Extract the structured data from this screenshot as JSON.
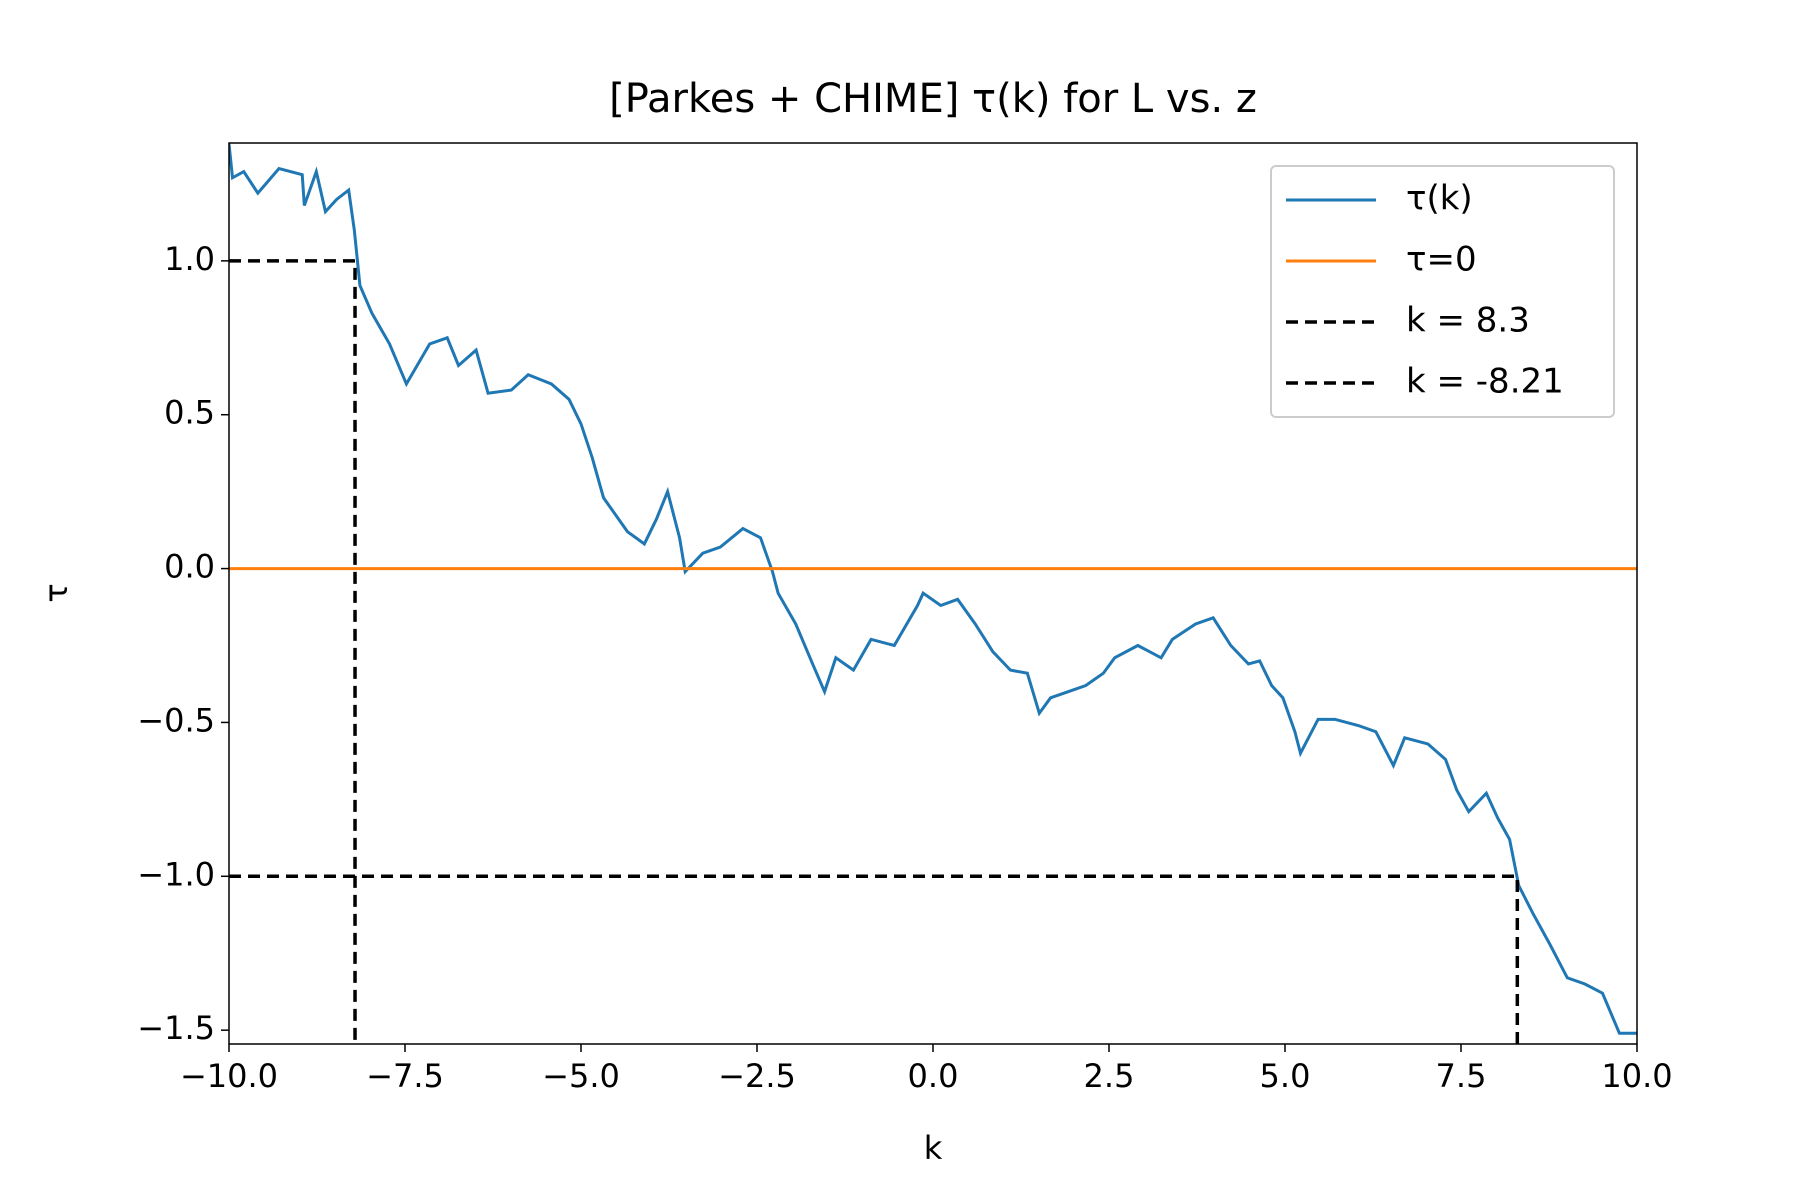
{
  "chart_data": {
    "type": "line",
    "title": "[Parkes + CHIME] τ(k) for L vs. z",
    "x_label": "k",
    "y_label": "τ",
    "xlim": [
      -10,
      10
    ],
    "ylim": [
      -1.545,
      1.383
    ],
    "xticks": [
      {
        "value": -10,
        "label": "−10.0"
      },
      {
        "value": -7.5,
        "label": "−7.5"
      },
      {
        "value": -5,
        "label": "−5.0"
      },
      {
        "value": -2.5,
        "label": "−2.5"
      },
      {
        "value": 0,
        "label": "0.0"
      },
      2.5,
      {
        "value": 5,
        "label": "5.0"
      },
      7.5,
      {
        "value": 10,
        "label": "10.0"
      }
    ],
    "yticks": [
      {
        "value": -1.5,
        "label": "−1.5"
      },
      {
        "value": -1,
        "label": "−1.0"
      },
      {
        "value": -0.5,
        "label": "−0.5"
      },
      {
        "value": 0,
        "label": "0.0"
      },
      0.5,
      {
        "value": 1,
        "label": "1.0"
      }
    ],
    "grid": false,
    "legend": "upper right",
    "series": [
      {
        "name": "τ(k)",
        "color": "#1f77b4",
        "style": "solid",
        "x": [
          -10,
          -9.95,
          -9.79,
          -9.59,
          -9.29,
          -8.96,
          -8.93,
          -8.76,
          -8.63,
          -8.47,
          -8.3,
          -8.22,
          -8.14,
          -7.97,
          -7.72,
          -7.48,
          -7.15,
          -6.9,
          -6.74,
          -6.49,
          -6.32,
          -5.99,
          -5.75,
          -5.42,
          -5.17,
          -5,
          -4.84,
          -4.68,
          -4.34,
          -4.1,
          -3.93,
          -3.77,
          -3.6,
          -3.52,
          -3.27,
          -3.02,
          -2.7,
          -2.45,
          -2.28,
          -2.2,
          -1.95,
          -1.71,
          -1.54,
          -1.38,
          -1.13,
          -0.88,
          -0.55,
          -0.22,
          -0.14,
          0.11,
          0.35,
          0.6,
          0.85,
          1.1,
          1.34,
          1.51,
          1.67,
          1.92,
          2.17,
          2.42,
          2.58,
          2.91,
          3.24,
          3.4,
          3.73,
          3.98,
          4.23,
          4.48,
          4.64,
          4.81,
          4.97,
          5.14,
          5.22,
          5.47,
          5.71,
          6.04,
          6.29,
          6.54,
          6.7,
          7.03,
          7.28,
          7.44,
          7.61,
          7.86,
          8.02,
          8.19,
          8.32,
          8.52,
          8.76,
          9.01,
          9.26,
          9.51,
          9.75,
          10
        ],
        "values": [
          1.38,
          1.27,
          1.29,
          1.22,
          1.3,
          1.28,
          1.18,
          1.29,
          1.16,
          1.2,
          1.23,
          1.1,
          0.92,
          0.83,
          0.73,
          0.6,
          0.73,
          0.75,
          0.66,
          0.71,
          0.57,
          0.58,
          0.63,
          0.6,
          0.55,
          0.47,
          0.36,
          0.23,
          0.12,
          0.08,
          0.16,
          0.25,
          0.1,
          -0.01,
          0.05,
          0.07,
          0.13,
          0.1,
          -0.01,
          -0.08,
          -0.18,
          -0.31,
          -0.4,
          -0.29,
          -0.33,
          -0.23,
          -0.25,
          -0.12,
          -0.08,
          -0.12,
          -0.1,
          -0.18,
          -0.27,
          -0.33,
          -0.34,
          -0.47,
          -0.42,
          -0.4,
          -0.38,
          -0.34,
          -0.29,
          -0.25,
          -0.29,
          -0.23,
          -0.18,
          -0.16,
          -0.25,
          -0.31,
          -0.3,
          -0.38,
          -0.42,
          -0.53,
          -0.6,
          -0.49,
          -0.49,
          -0.51,
          -0.53,
          -0.64,
          -0.55,
          -0.57,
          -0.62,
          -0.72,
          -0.79,
          -0.73,
          -0.81,
          -0.88,
          -1.03,
          -1.12,
          -1.22,
          -1.33,
          -1.35,
          -1.38,
          -1.51,
          -1.51
        ]
      },
      {
        "name": "τ=0",
        "color": "#ff7f0e",
        "style": "solid",
        "x": [
          -10,
          10
        ],
        "values": [
          0,
          0
        ]
      },
      {
        "name": "k = 8.3",
        "color": "#000000",
        "style": "dashed",
        "x": [
          -10,
          8.3,
          8.3
        ],
        "values": [
          -1,
          -1,
          -1.545
        ]
      },
      {
        "name": "k = -8.21",
        "color": "#000000",
        "style": "dashed",
        "x": [
          -10,
          -8.21,
          -8.21
        ],
        "values": [
          1,
          1,
          -1.545
        ]
      }
    ]
  }
}
